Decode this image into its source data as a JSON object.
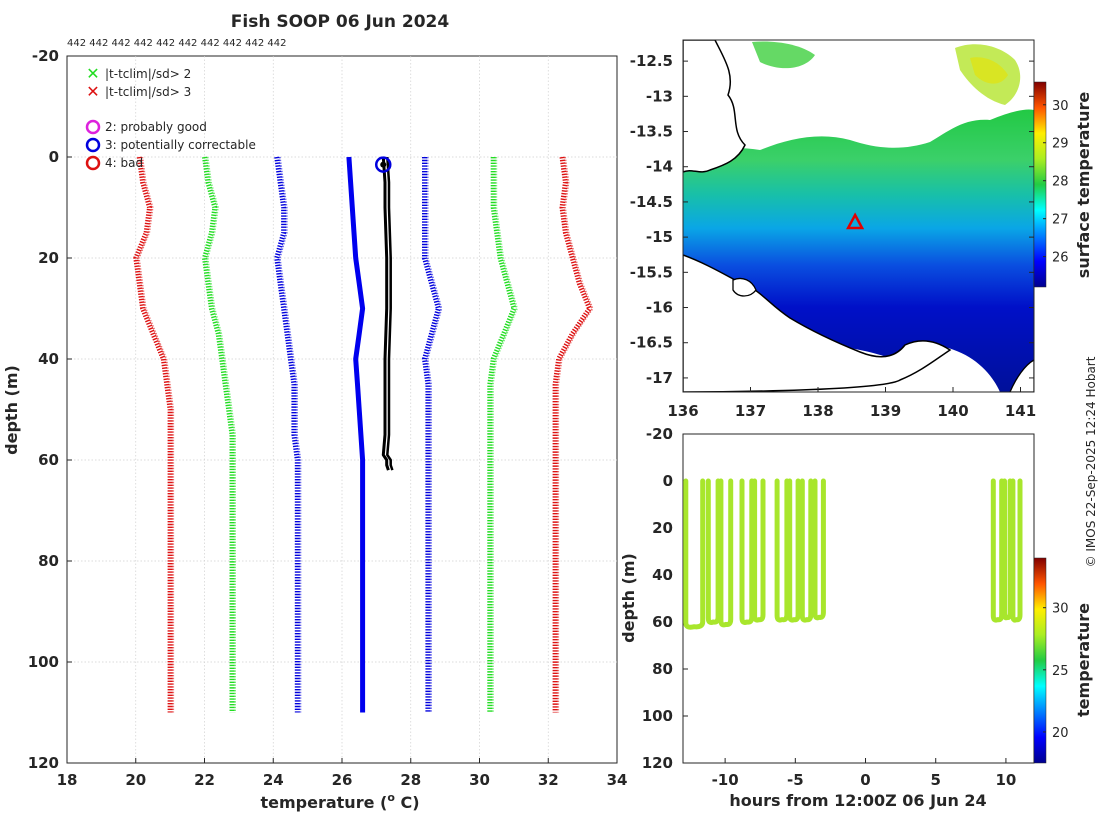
{
  "title": "Fish SOOP 06 Jun 2024",
  "platform_ids": "442 442 442 442 442 442 442 442 442 442",
  "credit": "© IMOS 22-Sep-2025 12:24 Hobart",
  "legend": {
    "flag_sd2": "|t-tclim|/sd> 2",
    "flag_sd3": "|t-tclim|/sd> 3",
    "qc2": "2: probably good",
    "qc3": "3: potentially correctable",
    "qc4": "4: bad"
  },
  "colors": {
    "sd1": "#0000dd",
    "sd2": "#22dd22",
    "sd3": "#dd1111",
    "mean": "#0000ee",
    "profile": "#000000",
    "magenta": "#dd22dd"
  },
  "chart_data": [
    {
      "type": "line",
      "title": "Fish SOOP 06 Jun 2024",
      "xlabel": "temperature (",
      "xlabel_sup": "o",
      "xlabel_end": " C)",
      "ylabel": "depth (m)",
      "xlim": [
        18,
        34
      ],
      "ylim": [
        -20,
        120
      ],
      "y_reversed": true,
      "xticks": [
        "18",
        "20",
        "22",
        "24",
        "26",
        "28",
        "30",
        "32",
        "34"
      ],
      "yticks": [
        "-20",
        "0",
        "20",
        "40",
        "60",
        "80",
        "100",
        "120"
      ],
      "grid": true,
      "depth": [
        0,
        5,
        10,
        15,
        20,
        25,
        30,
        35,
        40,
        45,
        50,
        55,
        60,
        70,
        80,
        90,
        100,
        110
      ],
      "series": [
        {
          "name": "clim - 3sd",
          "values": [
            20.1,
            20.2,
            20.4,
            20.3,
            20.0,
            20.1,
            20.2,
            20.5,
            20.8,
            20.9,
            21.0,
            21.0,
            21.0,
            21.0,
            21.0,
            21.0,
            21.0,
            21.0
          ]
        },
        {
          "name": "clim - 2sd",
          "values": [
            22.0,
            22.1,
            22.3,
            22.2,
            22.0,
            22.1,
            22.2,
            22.4,
            22.5,
            22.6,
            22.7,
            22.8,
            22.8,
            22.8,
            22.8,
            22.8,
            22.8,
            22.8
          ]
        },
        {
          "name": "clim - 1sd",
          "values": [
            24.1,
            24.2,
            24.3,
            24.3,
            24.1,
            24.2,
            24.3,
            24.4,
            24.5,
            24.6,
            24.6,
            24.6,
            24.7,
            24.7,
            24.7,
            24.7,
            24.7,
            24.7
          ]
        },
        {
          "name": "climatology mean",
          "values": [
            26.2,
            26.25,
            26.3,
            26.35,
            26.4,
            26.5,
            26.6,
            26.5,
            26.4,
            26.45,
            26.5,
            26.55,
            26.6,
            26.6,
            26.6,
            26.6,
            26.6,
            26.6
          ]
        },
        {
          "name": "clim + 1sd",
          "values": [
            28.4,
            28.4,
            28.4,
            28.4,
            28.4,
            28.6,
            28.8,
            28.6,
            28.4,
            28.5,
            28.5,
            28.5,
            28.5,
            28.5,
            28.5,
            28.5,
            28.5,
            28.5
          ]
        },
        {
          "name": "clim + 2sd",
          "values": [
            30.4,
            30.4,
            30.4,
            30.5,
            30.6,
            30.8,
            31.0,
            30.7,
            30.4,
            30.3,
            30.3,
            30.3,
            30.3,
            30.3,
            30.3,
            30.3,
            30.3,
            30.3
          ]
        },
        {
          "name": "clim + 3sd",
          "values": [
            32.4,
            32.5,
            32.4,
            32.5,
            32.7,
            32.9,
            33.2,
            32.7,
            32.3,
            32.2,
            32.2,
            32.2,
            32.2,
            32.2,
            32.2,
            32.2,
            32.2,
            32.2
          ]
        }
      ],
      "profile": {
        "name": "observed profile",
        "depth": [
          0,
          5,
          10,
          20,
          30,
          40,
          50,
          55,
          59,
          60,
          61,
          62
        ],
        "values": [
          27.2,
          27.25,
          27.25,
          27.3,
          27.3,
          27.25,
          27.25,
          27.25,
          27.2,
          27.3,
          27.3,
          27.35
        ]
      },
      "qc_marker": {
        "x": 27.2,
        "depth": 1.5
      }
    },
    {
      "type": "heatmap",
      "title": "",
      "xlabel": "",
      "ylabel": "",
      "xlim": [
        136,
        141.2
      ],
      "ylim": [
        -17.2,
        -12.2
      ],
      "xticks": [
        "136",
        "137",
        "138",
        "139",
        "140",
        "141"
      ],
      "yticks": [
        "-12.5",
        "-13",
        "-13.5",
        "-14",
        "-14.5",
        "-15",
        "-15.5",
        "-16",
        "-16.5",
        "-17"
      ],
      "colorbar": {
        "label": "surface temperature",
        "range": [
          25.2,
          30.6
        ],
        "ticks": [
          "26",
          "27",
          "28",
          "29",
          "30"
        ]
      },
      "profile_location": {
        "lon": 138.55,
        "lat": -14.8
      }
    },
    {
      "type": "scatter",
      "title": "",
      "xlabel": "hours from 12:00Z 06 Jun 24",
      "ylabel": "depth (m)",
      "xlim": [
        -13,
        12
      ],
      "ylim": [
        -20,
        120
      ],
      "y_reversed": true,
      "xticks": [
        "-10",
        "-5",
        "0",
        "5",
        "10"
      ],
      "yticks": [
        "-20",
        "0",
        "20",
        "40",
        "60",
        "80",
        "100",
        "120"
      ],
      "colorbar": {
        "label": "temperature",
        "range": [
          17.5,
          34
        ],
        "ticks": [
          "20",
          "25",
          "30"
        ]
      },
      "casts": [
        {
          "t0": -12.8,
          "t1": -11.6,
          "max_depth": 62
        },
        {
          "t0": -11.2,
          "t1": -10.5,
          "max_depth": 60
        },
        {
          "t0": -10.3,
          "t1": -9.6,
          "max_depth": 61
        },
        {
          "t0": -8.8,
          "t1": -8.1,
          "max_depth": 60
        },
        {
          "t0": -7.9,
          "t1": -7.3,
          "max_depth": 59
        },
        {
          "t0": -6.3,
          "t1": -5.6,
          "max_depth": 59
        },
        {
          "t0": -5.4,
          "t1": -4.8,
          "max_depth": 59
        },
        {
          "t0": -4.5,
          "t1": -3.9,
          "max_depth": 59
        },
        {
          "t0": -3.6,
          "t1": -3.0,
          "max_depth": 58
        },
        {
          "t0": 9.1,
          "t1": 9.7,
          "max_depth": 59
        },
        {
          "t0": 9.9,
          "t1": 10.3,
          "max_depth": 58
        },
        {
          "t0": 10.5,
          "t1": 11.0,
          "max_depth": 59
        }
      ]
    }
  ]
}
